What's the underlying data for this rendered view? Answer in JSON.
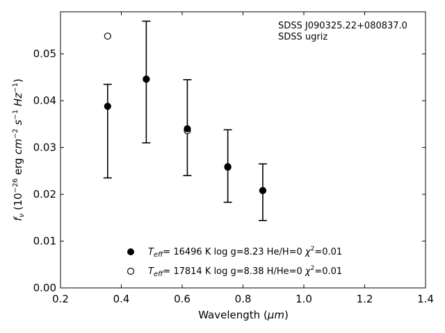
{
  "chart_data": {
    "type": "scatter",
    "xlabel_main": "Wavelength (",
    "xlabel_unit": "μm",
    "xlabel_close": ")",
    "ylabel": "f_ν (10^-26 erg cm^-2 s^-1 Hz^-1)",
    "xlim": [
      0.2,
      1.4
    ],
    "ylim": [
      0.0,
      0.059
    ],
    "xticks": [
      0.2,
      0.4,
      0.6,
      0.8,
      1.0,
      1.2,
      1.4
    ],
    "xtick_labels": [
      "0.2",
      "0.4",
      "0.6",
      "0.8",
      "1.0",
      "1.2",
      "1.4"
    ],
    "yticks": [
      0.0,
      0.01,
      0.02,
      0.03,
      0.04,
      0.05
    ],
    "ytick_labels": [
      "0.00",
      "0.01",
      "0.02",
      "0.03",
      "0.04",
      "0.05"
    ],
    "annotations": [
      "SDSS J090325.22+080837.0",
      "SDSS ugriz"
    ],
    "legend": {
      "placement": "lower-center",
      "entries": [
        {
          "marker": "filled",
          "teff_label": "T",
          "teff_sub": "eff",
          "text": "= 16496 K  log g=8.23  He/H=0  ",
          "chi": "χ",
          "chi_sup": "2",
          "chi_rest": "=0.01"
        },
        {
          "marker": "open",
          "teff_label": "T",
          "teff_sub": "eff",
          "text": "= 17814 K  log g=8.38  H/He=0  ",
          "chi": "χ",
          "chi_sup": "2",
          "chi_rest": "=0.01"
        }
      ]
    },
    "observed": {
      "x": [
        0.355,
        0.482,
        0.617,
        0.75,
        0.865
      ],
      "y": [
        0.0386,
        0.0442,
        0.0342,
        0.0257,
        0.0205
      ],
      "err_low": [
        0.0235,
        0.031,
        0.024,
        0.0183,
        0.0144
      ],
      "err_high": [
        0.0435,
        0.057,
        0.0445,
        0.0338,
        0.0265
      ]
    },
    "series": [
      {
        "marker": "filled",
        "x": [
          0.355,
          0.482,
          0.617,
          0.75,
          0.865
        ],
        "y": [
          0.0388,
          0.0446,
          0.034,
          0.0259,
          0.0208
        ]
      },
      {
        "marker": "open",
        "x": [
          0.355,
          0.482,
          0.617,
          0.75,
          0.865
        ],
        "y": [
          0.0538,
          0.0446,
          0.0336,
          0.0258,
          0.0208
        ]
      }
    ]
  }
}
